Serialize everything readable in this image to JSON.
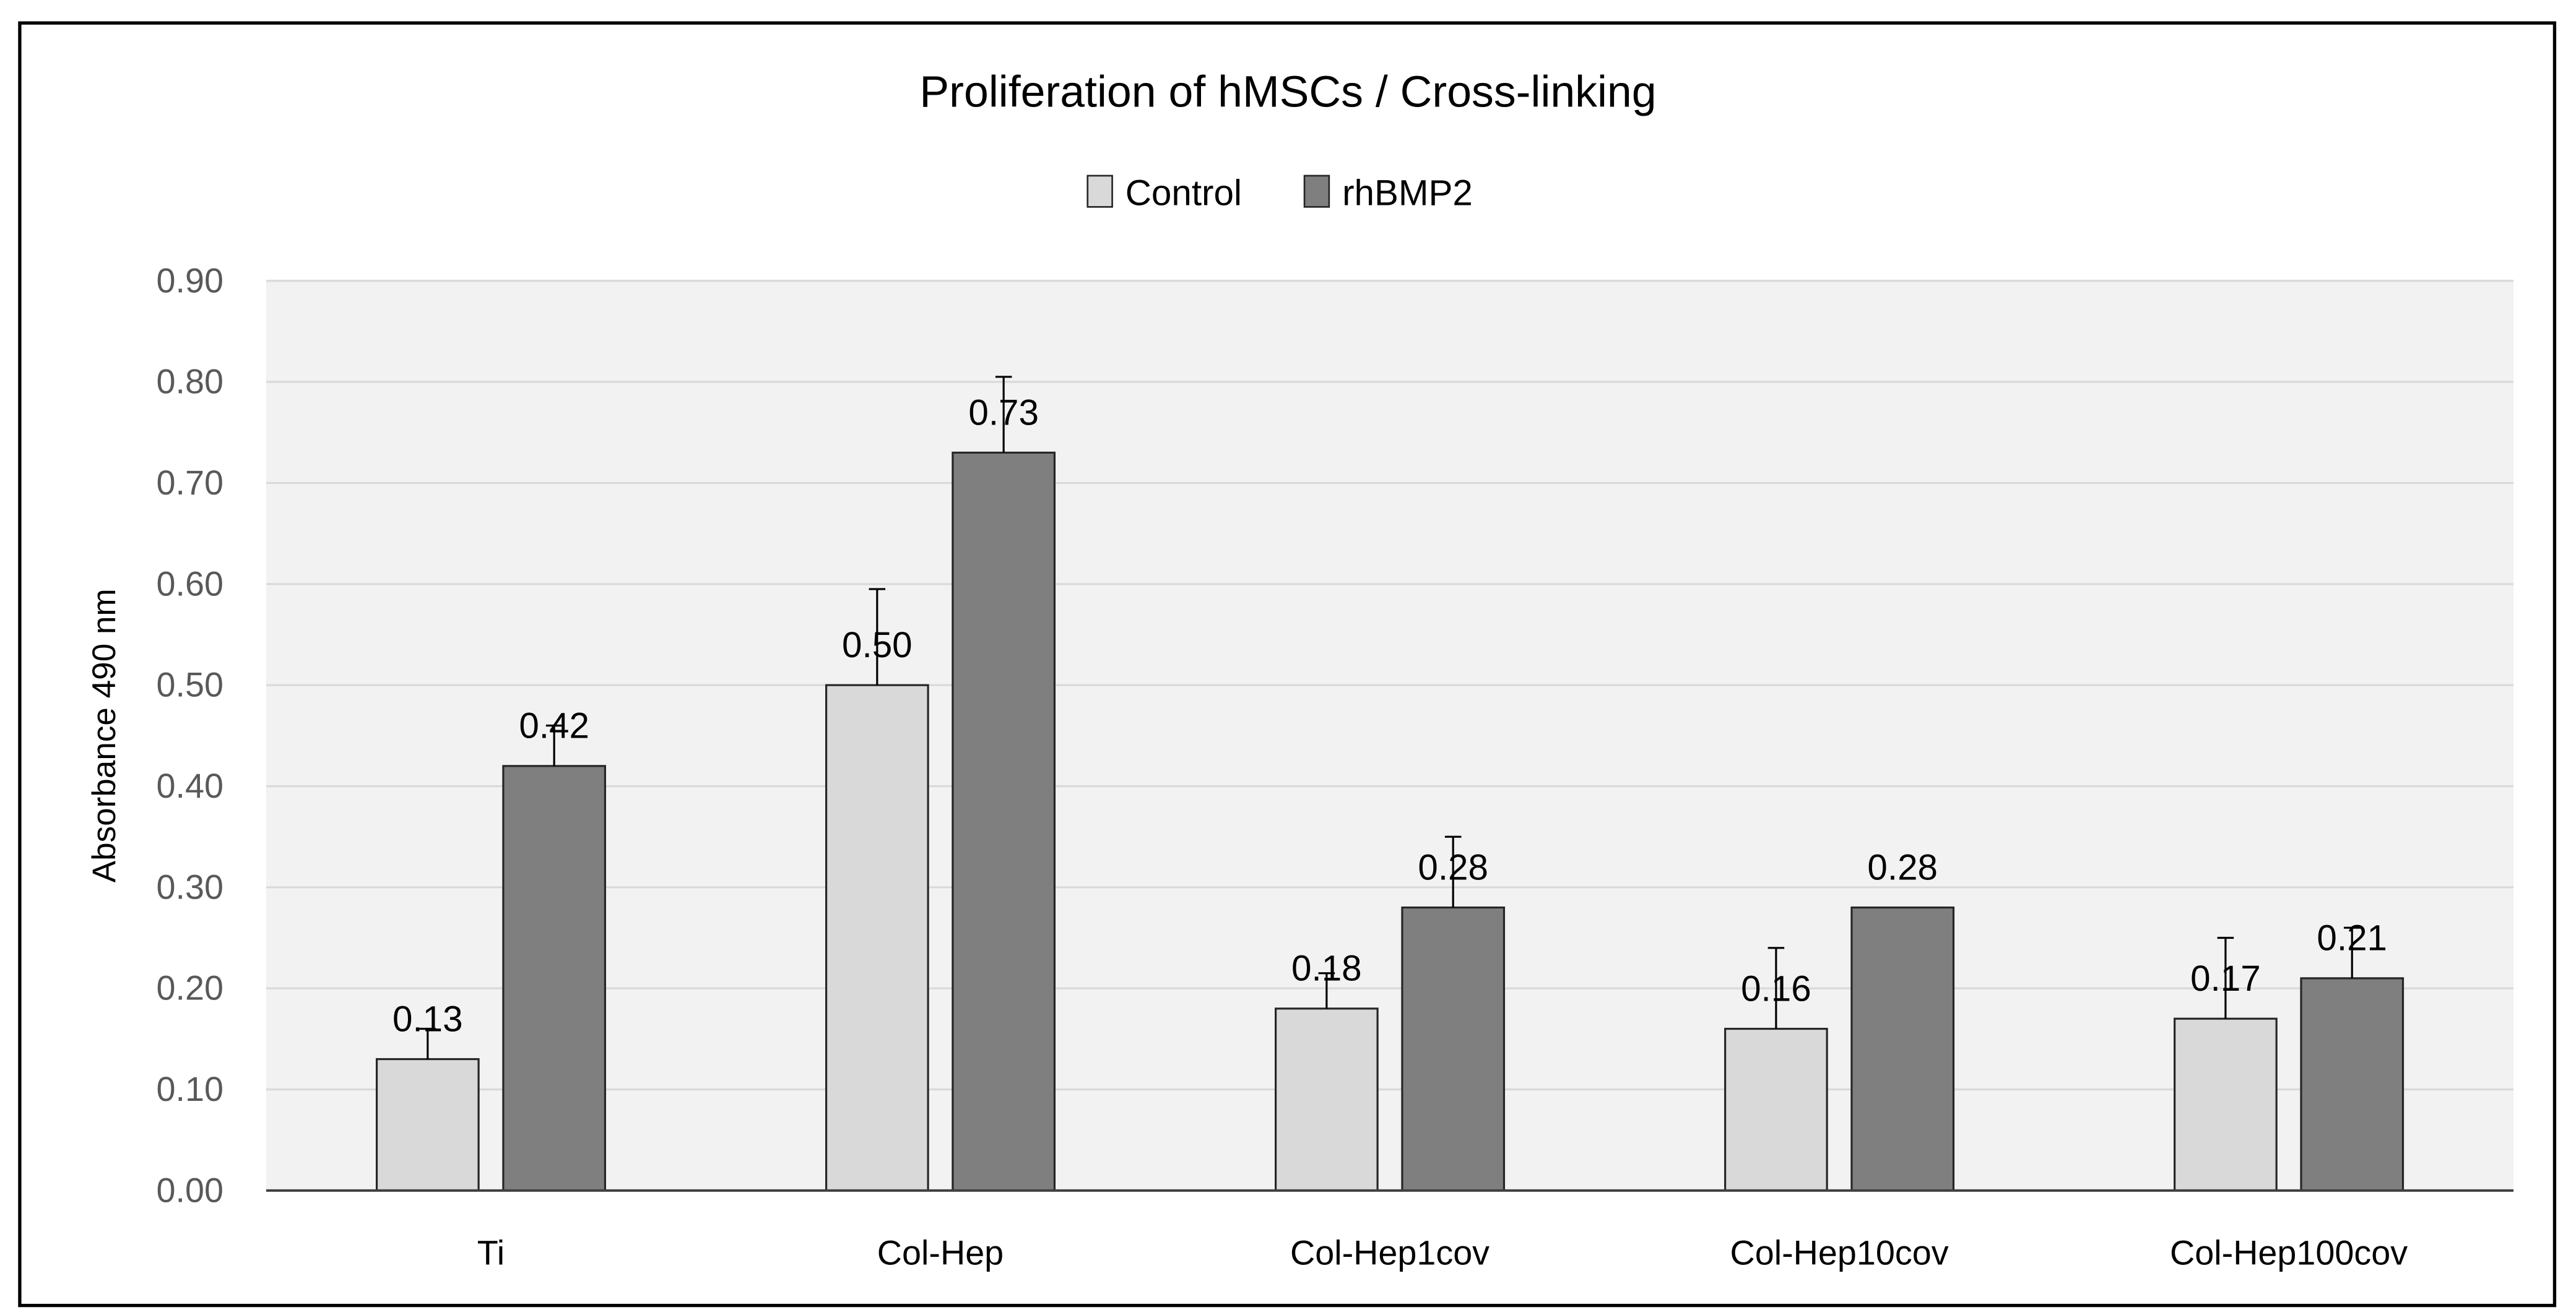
{
  "chart_data": {
    "type": "bar",
    "title": "Proliferation of hMSCs / Cross-linking",
    "xlabel": "",
    "ylabel": "Absorbance 490 nm",
    "ylim": [
      0,
      0.9
    ],
    "yticks": [
      "0.00",
      "0.10",
      "0.20",
      "0.30",
      "0.40",
      "0.50",
      "0.60",
      "0.70",
      "0.80",
      "0.90"
    ],
    "grid": true,
    "legend_position": "top-center",
    "categories": [
      "Ti",
      "Col-Hep",
      "Col-Hep1cov",
      "Col-Hep10cov",
      "Col-Hep100cov"
    ],
    "series": [
      {
        "name": "Control",
        "color": "#d9d9d9",
        "values": [
          0.13,
          0.5,
          0.18,
          0.16,
          0.17
        ],
        "labels": [
          "0.13",
          "0.50",
          "0.18",
          "0.16",
          "0.17"
        ],
        "error": [
          0.03,
          0.095,
          0.035,
          0.08,
          0.08
        ]
      },
      {
        "name": "rhBMP2",
        "color": "#7f7f7f",
        "values": [
          0.42,
          0.73,
          0.28,
          0.28,
          0.21
        ],
        "labels": [
          "0.42",
          "0.73",
          "0.28",
          "0.28",
          "0.21"
        ],
        "error": [
          0.04,
          0.075,
          0.07,
          0.0,
          0.05
        ]
      }
    ]
  }
}
